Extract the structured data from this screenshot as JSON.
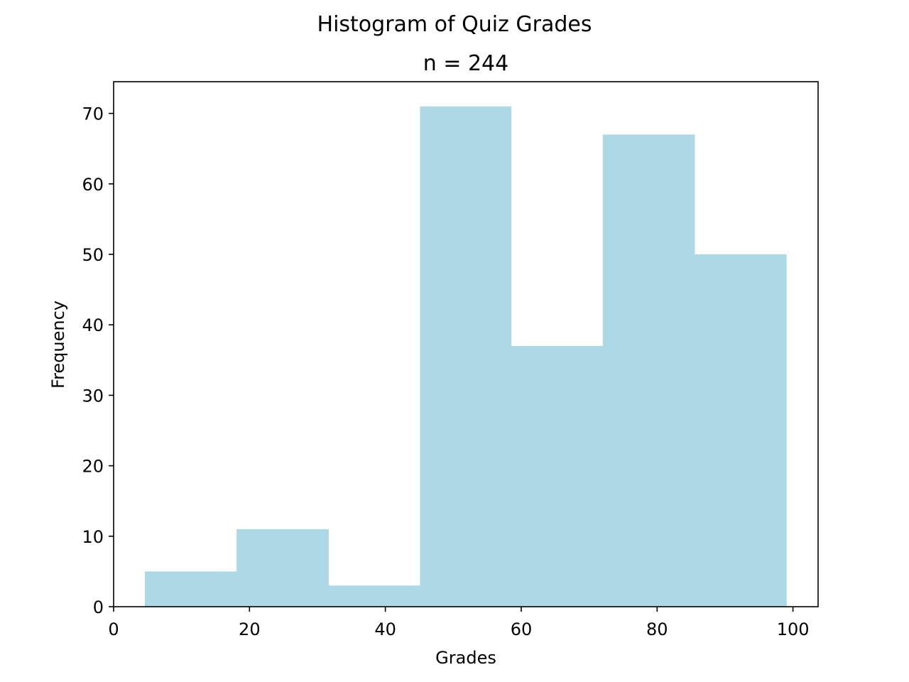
{
  "figure": {
    "suptitle": "Histogram of Quiz Grades",
    "title": "n = 244"
  },
  "chart_data": {
    "type": "bar",
    "title": "Histogram of Quiz Grades",
    "subtitle": "n = 244",
    "xlabel": "Grades",
    "ylabel": "Frequency",
    "xlim": [
      0,
      103.7
    ],
    "ylim": [
      0,
      74.5
    ],
    "xticks": [
      0,
      20,
      40,
      60,
      80,
      100
    ],
    "yticks": [
      0,
      10,
      20,
      30,
      40,
      50,
      60,
      70
    ],
    "bin_edges": [
      4.6,
      18.1,
      31.6,
      45.1,
      58.5,
      72.0,
      85.5,
      99.0
    ],
    "values": [
      5,
      11,
      3,
      71,
      37,
      67,
      50
    ],
    "bar_color": "#add8e6",
    "grid": false,
    "legend": "none"
  }
}
